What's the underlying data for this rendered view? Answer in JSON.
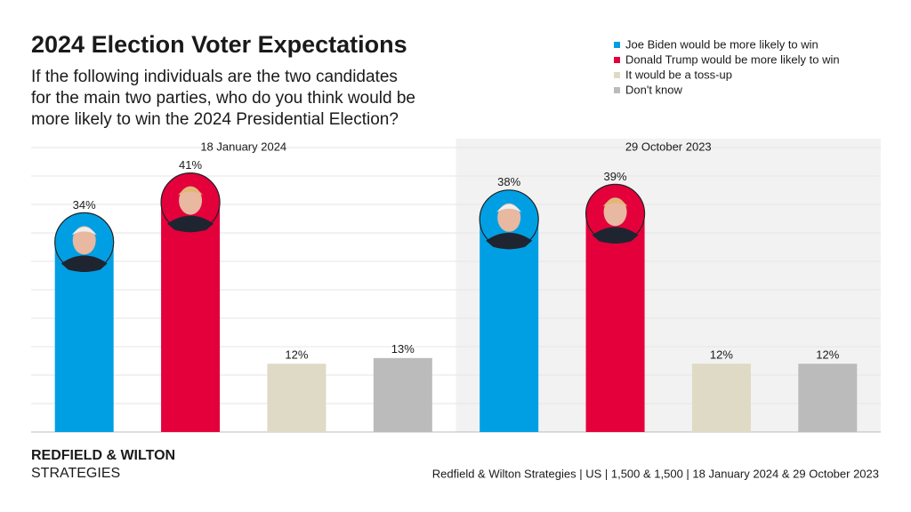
{
  "chart_data": {
    "type": "bar",
    "title": "2024 Election Voter Expectations",
    "subtitle": [
      "If the following individuals are the two candidates",
      "for the main two parties, who do you think would be",
      "more likely to win the 2024 Presidential Election?"
    ],
    "categories": [
      "18 January 2024",
      "29 October 2023"
    ],
    "series": [
      {
        "name": "Joe Biden would be more likely to win",
        "color": "#009fe3",
        "values": [
          34,
          38
        ],
        "value_labels": [
          "34%",
          "38%"
        ]
      },
      {
        "name": "Donald Trump would be more likely to win",
        "color": "#e4003b",
        "values": [
          41,
          39
        ],
        "value_labels": [
          "41%",
          "39%"
        ]
      },
      {
        "name": "It would be a toss-up",
        "color": "#dedac6",
        "values": [
          12,
          12
        ],
        "value_labels": [
          "12%",
          "12%"
        ]
      },
      {
        "name": "Don't know",
        "color": "#bcbbbb",
        "values": [
          13,
          12
        ],
        "value_labels": [
          "13%",
          "12%"
        ]
      }
    ],
    "ylim": [
      0,
      50
    ],
    "yticks": [
      0,
      5,
      10,
      15,
      20,
      25,
      30,
      35,
      40,
      45,
      50
    ],
    "grid": true,
    "brand": [
      "REDFIELD & WILTON",
      "STRATEGIES"
    ],
    "source": "Redfield & Wilton Strategies | US | 1,500 & 1,500 | 18 January 2024 & 29 October 2023"
  }
}
